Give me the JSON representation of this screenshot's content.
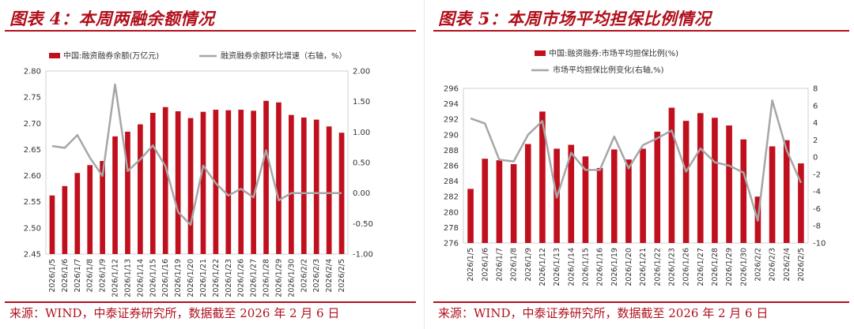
{
  "left": {
    "title": "图表 4：本周两融余额情况",
    "source": "来源：WIND，中泰证券研究所，数据截至 2026 年 2 月 6 日"
  },
  "right": {
    "title": "图表 5：本周市场平均担保比例情况",
    "source": "来源：WIND，中泰证券研究所，数据截至 2026 年 2 月 6 日"
  },
  "colors": {
    "bar": "#c0101e",
    "line": "#a6a6a6",
    "accent": "#b0101c"
  },
  "chart_data": [
    {
      "type": "bar+line",
      "title": "图表 4：本周两融余额情况",
      "categories": [
        "2026/1/5",
        "2026/1/6",
        "2026/1/7",
        "2026/1/8",
        "2026/1/9",
        "2026/1/12",
        "2026/1/13",
        "2026/1/14",
        "2026/1/15",
        "2026/1/16",
        "2026/1/19",
        "2026/1/20",
        "2026/1/21",
        "2026/1/22",
        "2026/1/23",
        "2026/1/26",
        "2026/1/27",
        "2026/1/28",
        "2026/1/29",
        "2026/1/30",
        "2026/2/2",
        "2026/2/3",
        "2026/2/4",
        "2026/2/5"
      ],
      "series": [
        {
          "name": "中国:融资融券余额(万亿元)",
          "kind": "bar",
          "axis": "left",
          "values": [
            2.562,
            2.58,
            2.605,
            2.62,
            2.628,
            2.675,
            2.684,
            2.698,
            2.72,
            2.731,
            2.723,
            2.71,
            2.722,
            2.726,
            2.725,
            2.726,
            2.724,
            2.743,
            2.74,
            2.716,
            2.711,
            2.707,
            2.694,
            2.682
          ]
        },
        {
          "name": "融资融券余额环比增速（右轴，%）",
          "kind": "line",
          "axis": "right",
          "values": [
            0.77,
            0.74,
            0.95,
            0.58,
            0.28,
            1.78,
            0.36,
            0.55,
            0.78,
            0.44,
            -0.31,
            -0.52,
            0.45,
            0.16,
            -0.04,
            0.07,
            -0.07,
            0.7,
            -0.12,
            0.0,
            0.0,
            0.0,
            0.0,
            0.0
          ]
        }
      ],
      "yleft": {
        "min": 2.45,
        "max": 2.8,
        "ticks": [
          "2.45",
          "2.50",
          "2.55",
          "2.60",
          "2.65",
          "2.70",
          "2.75",
          "2.80"
        ]
      },
      "yright": {
        "min": -1.0,
        "max": 2.0,
        "ticks": [
          "-1.00",
          "-0.50",
          "0.00",
          "0.50",
          "1.00",
          "1.50",
          "2.00"
        ]
      }
    },
    {
      "type": "bar+line",
      "title": "图表 5：本周市场平均担保比例情况",
      "categories": [
        "2026/1/5",
        "2026/1/6",
        "2026/1/7",
        "2026/1/8",
        "2026/1/9",
        "2026/1/12",
        "2026/1/13",
        "2026/1/14",
        "2026/1/15",
        "2026/1/16",
        "2026/1/19",
        "2026/1/20",
        "2026/1/21",
        "2026/1/22",
        "2026/1/23",
        "2026/1/26",
        "2026/1/27",
        "2026/1/28",
        "2026/1/29",
        "2026/1/30",
        "2026/2/2",
        "2026/2/3",
        "2026/2/4",
        "2026/2/5"
      ],
      "series": [
        {
          "name": "中国:融资融券:市场平均担保比例(%)",
          "kind": "bar",
          "axis": "left",
          "values": [
            283.0,
            286.9,
            286.7,
            286.2,
            288.8,
            293.0,
            288.2,
            288.7,
            287.2,
            285.7,
            288.1,
            286.8,
            288.2,
            290.4,
            293.5,
            291.8,
            292.8,
            292.2,
            291.2,
            289.4,
            282.0,
            288.5,
            289.3,
            286.3
          ]
        },
        {
          "name": "市场平均担保比例变化(右轴,%)",
          "kind": "line",
          "axis": "right",
          "values": [
            4.5,
            3.9,
            -0.3,
            -0.5,
            2.6,
            4.2,
            -4.7,
            0.5,
            -1.5,
            -1.5,
            2.4,
            -1.3,
            1.4,
            2.2,
            3.1,
            -1.7,
            1.0,
            -0.6,
            -1.0,
            -1.8,
            -7.4,
            6.6,
            0.8,
            -3.0
          ]
        }
      ],
      "yleft": {
        "min": 276,
        "max": 296,
        "ticks": [
          "276",
          "278",
          "280",
          "282",
          "284",
          "286",
          "288",
          "290",
          "292",
          "294",
          "296"
        ]
      },
      "yright": {
        "min": -10,
        "max": 8,
        "ticks": [
          "-10",
          "-8",
          "-6",
          "-4",
          "-2",
          "0",
          "2",
          "4",
          "6",
          "8"
        ]
      }
    }
  ]
}
